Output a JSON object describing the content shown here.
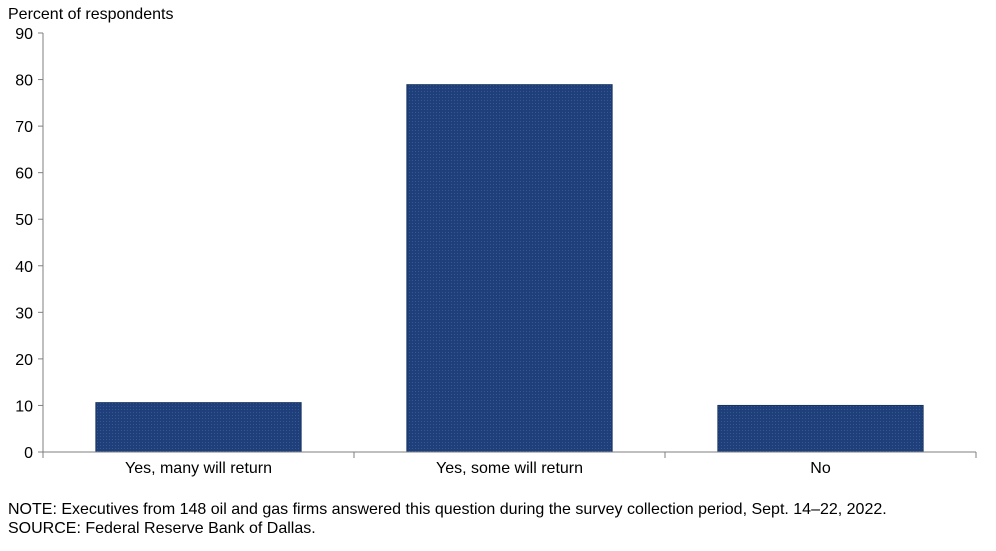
{
  "chart_data": {
    "type": "bar",
    "ylabel": "Percent of respondents",
    "categories": [
      "Yes, many will return",
      "Yes, some will return",
      "No"
    ],
    "values": [
      10.6,
      78.9,
      10.0
    ],
    "ylim": [
      0,
      90
    ],
    "yticks": [
      0,
      10,
      20,
      30,
      40,
      50,
      60,
      70,
      80,
      90
    ],
    "grid": false,
    "bar_color": "#1f3f7a"
  },
  "footer": {
    "note": "NOTE:  Executives  from 148 oil and gas firms answered this question during the survey collection period, Sept. 14–22, 2022.",
    "source": "SOURCE:  Federal Reserve Bank of Dallas."
  }
}
